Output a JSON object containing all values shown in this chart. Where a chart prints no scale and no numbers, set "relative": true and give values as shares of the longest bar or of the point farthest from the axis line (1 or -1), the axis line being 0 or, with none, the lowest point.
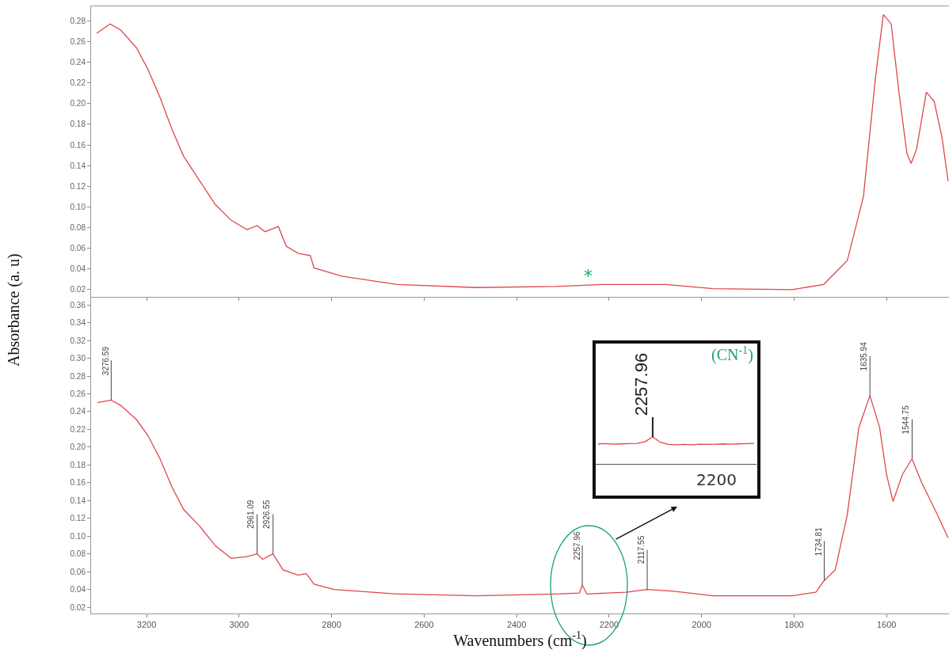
{
  "chart_data": [
    {
      "type": "line",
      "ylabel": "Absorbance (a. u)",
      "xlim": [
        3320,
        1465
      ],
      "ylim": [
        0.013,
        0.294
      ],
      "xticks": [
        3200,
        3000,
        2800,
        2600,
        2400,
        2200,
        2000,
        1800,
        1600
      ],
      "yticks": [
        0.02,
        0.04,
        0.06,
        0.08,
        {
          "value": 0.1,
          "label": "0.10"
        },
        0.12,
        0.14,
        0.16,
        0.18,
        {
          "value": 0.2,
          "label": "0.20"
        },
        0.22,
        0.24,
        0.26,
        0.28
      ],
      "tick_labels": "y",
      "series": [
        {
          "color": "#e0474c",
          "x": [
            3308,
            3279,
            3256,
            3222,
            3197,
            3171,
            3145,
            3120,
            3085,
            3051,
            3017,
            2983,
            2961,
            2944,
            2915,
            2898,
            2872,
            2846,
            2838,
            2778,
            2658,
            2487,
            2316,
            2214,
            2077,
            1975,
            1804,
            1736,
            1685,
            1650,
            1624,
            1607,
            1590,
            1573,
            1556,
            1547,
            1535,
            1514,
            1497,
            1480,
            1467
          ],
          "values": [
            0.268,
            0.277,
            0.271,
            0.254,
            0.233,
            0.206,
            0.175,
            0.149,
            0.125,
            0.102,
            0.087,
            0.078,
            0.082,
            0.076,
            0.081,
            0.062,
            0.055,
            0.053,
            0.041,
            0.033,
            0.025,
            0.022,
            0.023,
            0.025,
            0.025,
            0.021,
            0.02,
            0.025,
            0.048,
            0.11,
            0.225,
            0.286,
            0.277,
            0.21,
            0.152,
            0.142,
            0.156,
            0.211,
            0.202,
            0.167,
            0.125
          ]
        }
      ],
      "annotations": [
        "*"
      ]
    },
    {
      "type": "line",
      "xlabel": "Wavenumbers (cm$^{-1}$)",
      "xlim": [
        3320,
        1465
      ],
      "ylim": [
        0.013,
        0.369
      ],
      "xticks": [
        3200,
        3000,
        2800,
        2600,
        2400,
        2200,
        2000,
        1800,
        1600
      ],
      "yticks": [
        0.02,
        0.04,
        0.06,
        0.08,
        {
          "value": 0.1,
          "label": "0.10"
        },
        0.12,
        0.14,
        0.16,
        0.18,
        {
          "value": 0.2,
          "label": "0.20"
        },
        0.22,
        0.24,
        0.26,
        0.28,
        {
          "value": 0.3,
          "label": "0.30"
        },
        0.32,
        0.34,
        0.36
      ],
      "series": [
        {
          "color": "#e0474c",
          "x": [
            3306,
            3277,
            3256,
            3222,
            3197,
            3171,
            3145,
            3120,
            3085,
            3051,
            3017,
            2983,
            2961,
            2949,
            2927,
            2905,
            2872,
            2855,
            2838,
            2795,
            2658,
            2487,
            2316,
            2264,
            2258,
            2248,
            2163,
            2118,
            2060,
            1975,
            1804,
            1753,
            1735,
            1711,
            1685,
            1660,
            1636,
            1615,
            1600,
            1586,
            1566,
            1545,
            1524,
            1490,
            1467
          ],
          "values": [
            0.25,
            0.253,
            0.247,
            0.231,
            0.213,
            0.187,
            0.155,
            0.13,
            0.111,
            0.089,
            0.075,
            0.077,
            0.08,
            0.074,
            0.08,
            0.062,
            0.056,
            0.058,
            0.046,
            0.04,
            0.035,
            0.033,
            0.035,
            0.036,
            0.045,
            0.035,
            0.037,
            0.04,
            0.038,
            0.033,
            0.033,
            0.037,
            0.05,
            0.062,
            0.124,
            0.222,
            0.258,
            0.222,
            0.169,
            0.139,
            0.169,
            0.187,
            0.16,
            0.124,
            0.098
          ]
        }
      ],
      "annotations": [
        {
          "text": "3276.59",
          "x": 3276.59,
          "y": 0.253
        },
        {
          "text": "2961.09",
          "x": 2961.09,
          "y": 0.08
        },
        {
          "text": "2926.55",
          "x": 2926.55,
          "y": 0.08
        },
        {
          "text": "2257.96",
          "x": 2257.96,
          "y": 0.045
        },
        {
          "text": "2117.55",
          "x": 2117.55,
          "y": 0.04
        },
        {
          "text": "1734.81",
          "x": 1734.81,
          "y": 0.05
        },
        {
          "text": "1635.94",
          "x": 1635.94,
          "y": 0.258
        },
        {
          "text": "1544.75",
          "x": 1544.75,
          "y": 0.187
        }
      ]
    },
    {
      "type": "line",
      "relative": true,
      "tick_labels": false,
      "categories": [
        null,
        null,
        null,
        null,
        null,
        null,
        null,
        null,
        null,
        null,
        null,
        null,
        null,
        null,
        null,
        null,
        null,
        null,
        null,
        null,
        null
      ],
      "series": [
        {
          "color": "#e0474c",
          "values": [
            0.74,
            0.75,
            0.73,
            0.74,
            0.75,
            0.76,
            0.82,
            1.0,
            0.8,
            0.72,
            0.71,
            0.72,
            0.71,
            0.73,
            0.72,
            0.73,
            0.74,
            0.73,
            0.74,
            0.75,
            0.76
          ]
        }
      ],
      "annotations": [
        "2257.96",
        "(CN$^{-1}$)",
        "2200"
      ]
    }
  ]
}
